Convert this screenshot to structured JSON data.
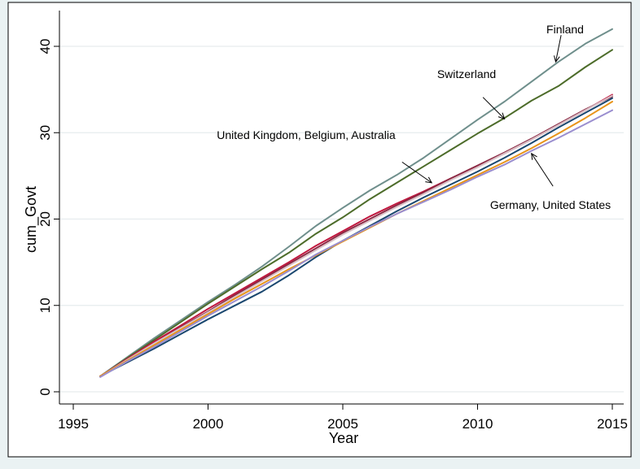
{
  "chart_data": {
    "type": "line",
    "title": "",
    "xlabel": "Year",
    "ylabel": "cum_Govt",
    "xlim": [
      1995,
      2015
    ],
    "ylim": [
      0,
      42
    ],
    "xticks": [
      1995,
      2000,
      2005,
      2010,
      2015
    ],
    "yticks": [
      0,
      10,
      20,
      30,
      40
    ],
    "grid": "horizontal",
    "x": [
      1996,
      1997,
      1998,
      1999,
      2000,
      2001,
      2002,
      2003,
      2004,
      2005,
      2006,
      2007,
      2008,
      2009,
      2010,
      2011,
      2012,
      2013,
      2014,
      2015
    ],
    "series": [
      {
        "color": "#6f8f8c",
        "values": [
          1.8,
          4.0,
          6.2,
          8.3,
          10.4,
          12.4,
          14.5,
          16.8,
          19.2,
          21.3,
          23.3,
          25.1,
          27.1,
          29.3,
          31.5,
          33.6,
          35.9,
          38.2,
          40.3,
          42.0
        ]
      },
      {
        "color": "#4d6c2a",
        "values": [
          1.8,
          3.9,
          6.0,
          8.1,
          10.2,
          12.2,
          14.2,
          16.1,
          18.3,
          20.2,
          22.3,
          24.2,
          26.1,
          28.0,
          29.9,
          31.7,
          33.7,
          35.4,
          37.6,
          39.6
        ]
      },
      {
        "color": "#c0173e",
        "values": [
          1.8,
          3.8,
          5.8,
          7.7,
          9.6,
          11.4,
          13.2,
          15.0,
          16.9,
          18.6,
          20.3,
          21.8,
          23.2,
          24.7,
          26.1,
          27.6,
          29.2,
          30.9,
          32.6,
          34.4
        ]
      },
      {
        "color": "#8b2742",
        "values": [
          1.8,
          3.7,
          5.6,
          7.5,
          9.3,
          11.2,
          13.0,
          14.8,
          16.6,
          18.4,
          20.0,
          21.6,
          23.1,
          24.7,
          26.2,
          27.7,
          29.3,
          31.0,
          32.7,
          34.2
        ]
      },
      {
        "color": "#d9c2c8",
        "values": [
          1.8,
          3.7,
          5.6,
          7.4,
          9.2,
          11.0,
          12.8,
          14.6,
          16.4,
          18.2,
          19.8,
          21.4,
          22.9,
          24.5,
          26.0,
          27.6,
          29.2,
          30.9,
          32.6,
          34.3
        ]
      },
      {
        "color": "#1a476f",
        "values": [
          1.8,
          3.4,
          5.0,
          6.7,
          8.4,
          10.0,
          11.6,
          13.5,
          15.6,
          17.5,
          19.2,
          20.9,
          22.5,
          24.0,
          25.5,
          27.1,
          28.8,
          30.6,
          32.3,
          34.0
        ]
      },
      {
        "color": "#e8941a",
        "values": [
          1.8,
          3.6,
          5.4,
          7.2,
          9.0,
          10.8,
          12.5,
          14.2,
          15.8,
          17.4,
          19.0,
          20.6,
          22.1,
          23.6,
          25.1,
          26.6,
          28.2,
          29.9,
          31.7,
          33.6
        ]
      },
      {
        "color": "#9a8ecf",
        "values": [
          1.7,
          3.5,
          5.2,
          7.0,
          8.8,
          10.5,
          12.2,
          14.0,
          15.9,
          17.5,
          19.1,
          20.6,
          22.0,
          23.4,
          24.9,
          26.3,
          27.9,
          29.4,
          31.0,
          32.6
        ]
      }
    ],
    "annotations": [
      {
        "text": "Finland",
        "arrow_from": [
          2013.1,
          41.3
        ],
        "arrow_to": [
          2012.9,
          38.2
        ]
      },
      {
        "text": "Switzerland",
        "arrow_from": [
          2010.2,
          34.1
        ],
        "arrow_to": [
          2011.0,
          31.6
        ]
      },
      {
        "text": "United Kingdom, Belgium, Australia",
        "arrow_from": [
          2007.2,
          26.6
        ],
        "arrow_to": [
          2008.3,
          24.2
        ]
      },
      {
        "text": "Germany, United States",
        "arrow_from": [
          2012.8,
          23.8
        ],
        "arrow_to": [
          2012.0,
          27.6
        ]
      }
    ]
  }
}
